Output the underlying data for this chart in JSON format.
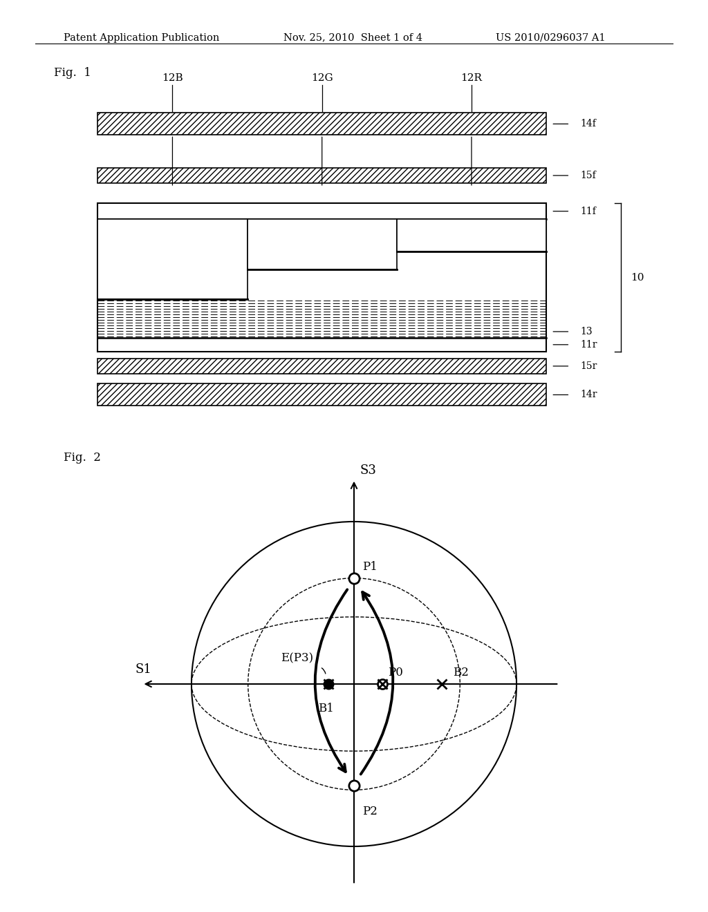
{
  "header_left": "Patent Application Publication",
  "header_mid": "Nov. 25, 2010  Sheet 1 of 4",
  "header_right": "US 2010/0296037 A1",
  "fig1_label": "Fig.  1",
  "fig2_label": "Fig.  2",
  "layer_labels": [
    "12B",
    "12G",
    "12R"
  ],
  "right_labels_fig1": [
    "14f",
    "15f",
    "11f",
    "13",
    "10",
    "11r",
    "15r",
    "14r"
  ],
  "s3_label": "S3",
  "s1_label": "S1",
  "point_labels": [
    "P1",
    "P2",
    "P0",
    "B1",
    "B2",
    "E(P3)"
  ]
}
